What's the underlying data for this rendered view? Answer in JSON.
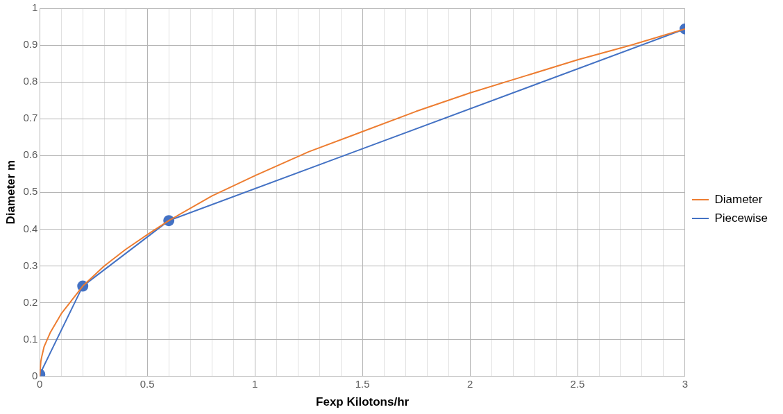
{
  "chart_data": {
    "type": "line",
    "xlabel": "Fexp Kilotons/hr",
    "ylabel": "Diameter m",
    "legend": "right",
    "grid": true,
    "line_style": "solid",
    "xlim": [
      0,
      3
    ],
    "ylim": [
      0,
      1
    ],
    "xticks": [
      0,
      {
        "value": 0.1,
        "label": null
      },
      {
        "value": 0.2,
        "label": null
      },
      {
        "value": 0.3,
        "label": null
      },
      {
        "value": 0.4,
        "label": null
      },
      0.5,
      {
        "value": 0.6,
        "label": null
      },
      {
        "value": 0.7,
        "label": null
      },
      {
        "value": 0.8,
        "label": null
      },
      {
        "value": 0.9,
        "label": null
      },
      1,
      {
        "value": 1.1,
        "label": null
      },
      {
        "value": 1.2,
        "label": null
      },
      {
        "value": 1.3,
        "label": null
      },
      {
        "value": 1.4,
        "label": null
      },
      1.5,
      {
        "value": 1.6,
        "label": null
      },
      {
        "value": 1.7,
        "label": null
      },
      {
        "value": 1.8,
        "label": null
      },
      {
        "value": 1.9,
        "label": null
      },
      2,
      {
        "value": 2.1,
        "label": null
      },
      {
        "value": 2.2,
        "label": null
      },
      {
        "value": 2.3,
        "label": null
      },
      {
        "value": 2.4,
        "label": null
      },
      2.5,
      {
        "value": 2.6,
        "label": null
      },
      {
        "value": 2.7,
        "label": null
      },
      {
        "value": 2.8,
        "label": null
      },
      {
        "value": 2.9,
        "label": null
      },
      3
    ],
    "yticks": [
      0,
      0.1,
      0.2,
      0.3,
      0.4,
      0.5,
      0.6,
      0.7,
      0.8,
      0.9,
      1
    ],
    "series": [
      {
        "name": "Diameter",
        "color": "#ed7d31",
        "marker": "none",
        "x": [
          0,
          0.005,
          0.01,
          0.02,
          0.05,
          0.1,
          0.2,
          0.3,
          0.4,
          0.5,
          0.6,
          0.8,
          1,
          1.25,
          1.5,
          1.75,
          2,
          2.25,
          2.5,
          2.75,
          3
        ],
        "values": [
          0,
          0.04,
          0.055,
          0.08,
          0.12,
          0.17,
          0.245,
          0.3,
          0.345,
          0.385,
          0.423,
          0.49,
          0.545,
          0.61,
          0.665,
          0.72,
          0.77,
          0.815,
          0.86,
          0.9,
          0.944
        ]
      },
      {
        "name": "Piecewise",
        "color": "#4472c4",
        "marker": "circle",
        "x": [
          0,
          0.2,
          0.6,
          3
        ],
        "values": [
          0.005,
          0.245,
          0.423,
          0.944
        ]
      }
    ]
  }
}
